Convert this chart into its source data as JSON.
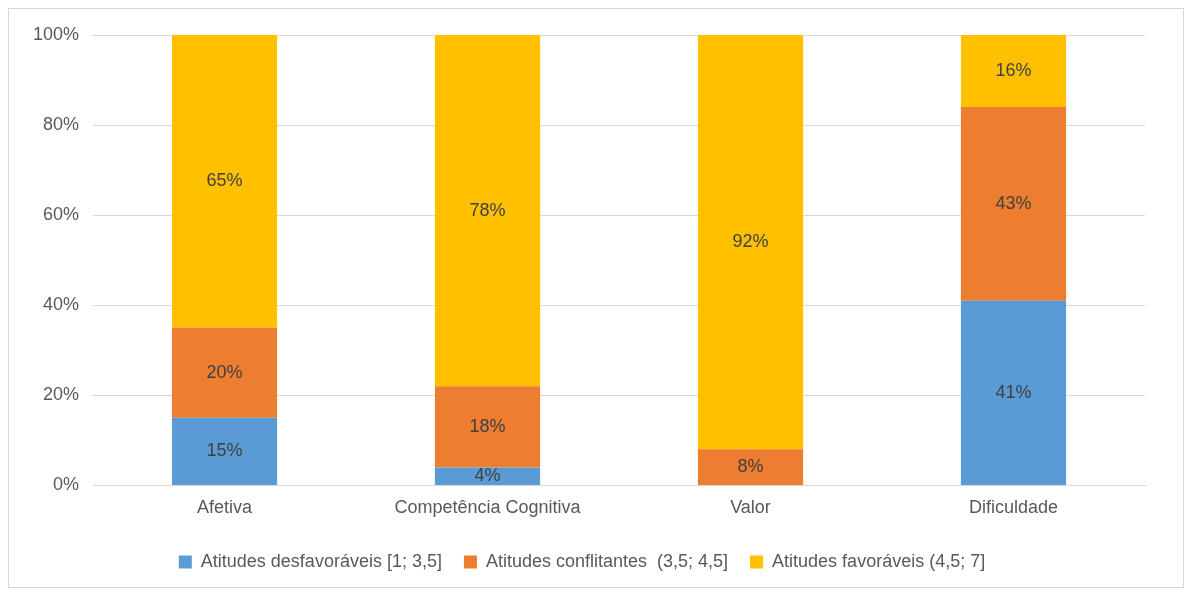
{
  "chart_data": {
    "type": "bar",
    "stacked": true,
    "categories": [
      "Afetiva",
      "Competência Cognitiva",
      "Valor",
      "Dificuldade"
    ],
    "series": [
      {
        "name": "Atitudes desfavoráveis [1; 3,5]",
        "color": "#5b9bd5",
        "values": [
          15,
          4,
          0,
          41
        ],
        "value_labels": [
          "15%",
          "4%",
          null,
          "41%"
        ]
      },
      {
        "name": "Atitudes conflitantes  (3,5; 4,5]",
        "color": "#ed7d31",
        "values": [
          20,
          18,
          8,
          43
        ],
        "value_labels": [
          "20%",
          "18%",
          "8%",
          "43%"
        ]
      },
      {
        "name": "Atitudes favoráveis (4,5; 7]",
        "color": "#ffc000",
        "values": [
          65,
          78,
          92,
          16
        ],
        "value_labels": [
          "65%",
          "78%",
          "92%",
          "16%"
        ]
      }
    ],
    "ylim": [
      0,
      100
    ],
    "yticks": [
      {
        "value": 0,
        "label": "0%"
      },
      {
        "value": 20,
        "label": "20%"
      },
      {
        "value": 40,
        "label": "40%"
      },
      {
        "value": 60,
        "label": "60%"
      },
      {
        "value": 80,
        "label": "80%"
      },
      {
        "value": 100,
        "label": "100%"
      }
    ],
    "grid": "y",
    "legend": "bottom"
  }
}
